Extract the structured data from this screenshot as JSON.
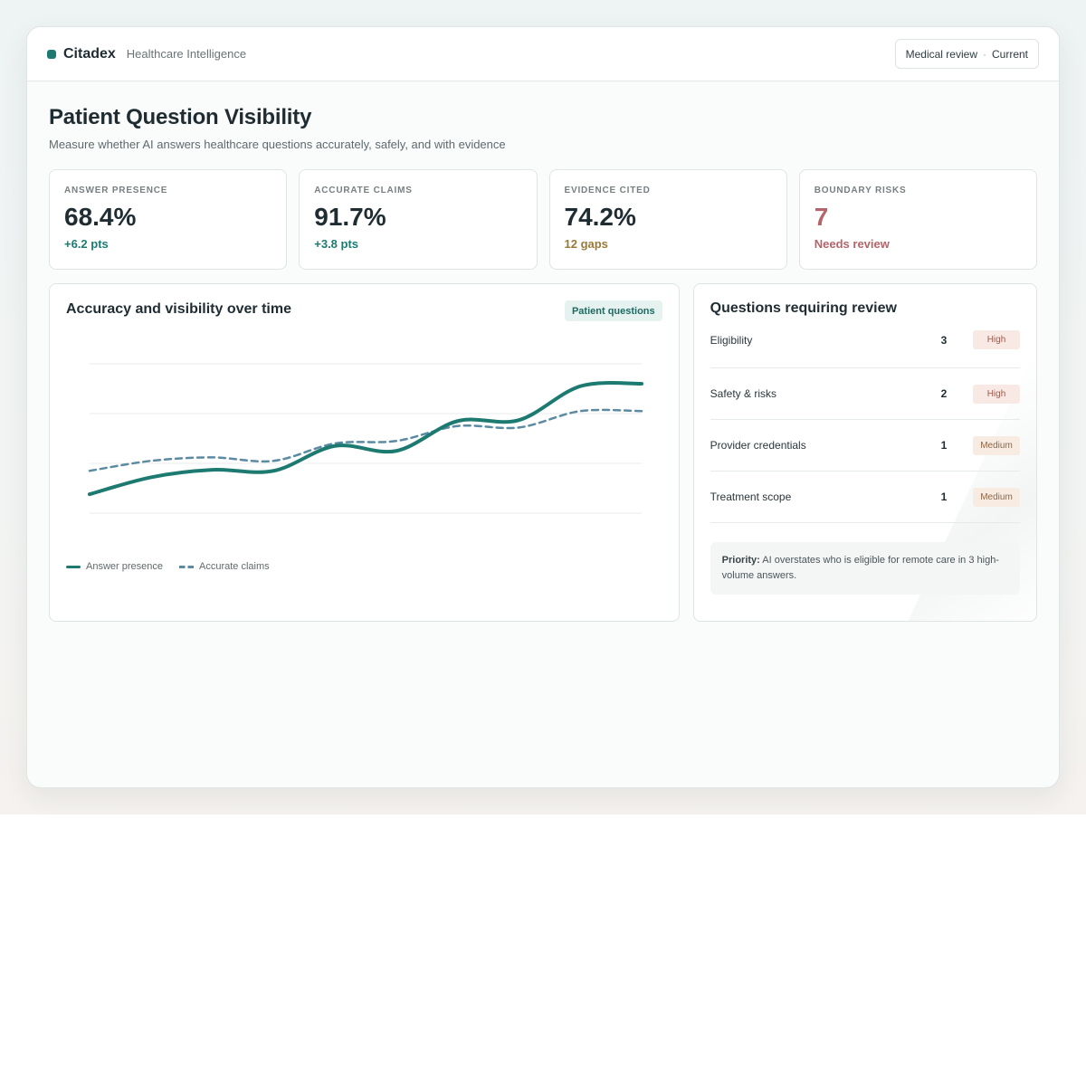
{
  "app": {
    "name": "Citadex",
    "subtitle": "Healthcare Intelligence"
  },
  "top_pill": {
    "left": "Medical review",
    "separator": "·",
    "right": "Current"
  },
  "page": {
    "title": "Patient Question Visibility",
    "subtitle": "Measure whether AI answers healthcare questions accurately, safely, and with evidence"
  },
  "stats": [
    {
      "label": "ANSWER PRESENCE",
      "value": "68.4%",
      "delta": "+6.2 pts",
      "delta_color": "#1d7a70",
      "value_color": "#1f2d33"
    },
    {
      "label": "ACCURATE CLAIMS",
      "value": "91.7%",
      "delta": "+3.8 pts",
      "delta_color": "#1d7a70",
      "value_color": "#1f2d33"
    },
    {
      "label": "EVIDENCE CITED",
      "value": "74.2%",
      "delta": "12 gaps",
      "delta_color": "#9a7a3a",
      "value_color": "#1f2d33"
    },
    {
      "label": "BOUNDARY RISKS",
      "value": "7",
      "delta": "Needs review",
      "delta_color": "#b5646a",
      "value_color": "#b5646a"
    }
  ],
  "chart_card": {
    "title": "Accuracy and visibility over time",
    "chip": "Patient questions"
  },
  "chart_data": {
    "type": "line",
    "title": "Accuracy and visibility over time",
    "x": [
      0,
      1,
      2,
      3,
      4,
      5,
      6,
      7,
      8,
      9
    ],
    "ylim": [
      0,
      3
    ],
    "grid": true,
    "legend": "bottom-left",
    "series": [
      {
        "name": "Answer presence",
        "style": "solid",
        "color": "#1d7a70",
        "values": [
          0.38,
          0.72,
          0.87,
          0.85,
          1.35,
          1.25,
          1.85,
          1.87,
          2.55,
          2.6
        ]
      },
      {
        "name": "Accurate claims",
        "style": "dashed",
        "color": "#5b8ba3",
        "values": [
          0.85,
          1.05,
          1.12,
          1.05,
          1.4,
          1.45,
          1.75,
          1.72,
          2.05,
          2.05
        ]
      }
    ]
  },
  "review": {
    "title": "Questions requiring review",
    "items": [
      {
        "name": "Eligibility",
        "count": "3",
        "level": "High"
      },
      {
        "name": "Safety & risks",
        "count": "2",
        "level": "High"
      },
      {
        "name": "Provider credentials",
        "count": "1",
        "level": "Medium"
      },
      {
        "name": "Treatment scope",
        "count": "1",
        "level": "Medium"
      }
    ],
    "priority_label": "Priority:",
    "priority_text": " AI overstates who is eligible for remote care in 3 high-volume answers."
  }
}
